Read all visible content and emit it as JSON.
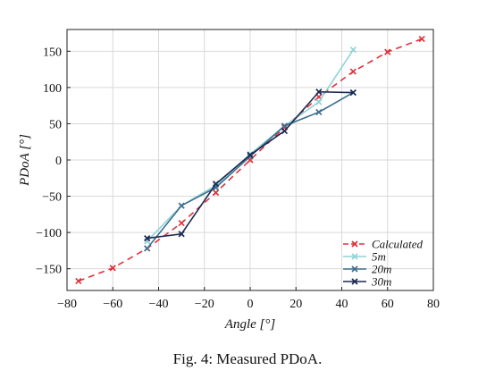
{
  "caption": "Fig. 4: Measured PDoA.",
  "chart_data": {
    "type": "line",
    "xlabel": "Angle [°]",
    "ylabel": "PDoA [°]",
    "xlim": [
      -80,
      80
    ],
    "ylim": [
      -180,
      180
    ],
    "xticks": [
      -80,
      -60,
      -40,
      -20,
      0,
      20,
      40,
      60,
      80
    ],
    "yticks": [
      -150,
      -100,
      -50,
      0,
      50,
      100,
      150
    ],
    "grid": true,
    "legend_position": "bottom-right",
    "series": [
      {
        "name": "Calculated",
        "color": "#e0323c",
        "dashed": true,
        "x": [
          -75,
          -60,
          -45,
          -30,
          -15,
          0,
          15,
          30,
          45,
          60,
          75
        ],
        "y": [
          -167,
          -149,
          -122,
          -87,
          -45,
          0,
          45,
          87,
          122,
          149,
          167
        ]
      },
      {
        "name": "5m",
        "color": "#8fd3d6",
        "dashed": false,
        "x": [
          -45,
          -30,
          -15,
          0,
          15,
          30,
          45
        ],
        "y": [
          -112,
          -63,
          -35,
          8,
          47,
          80,
          152
        ]
      },
      {
        "name": "20m",
        "color": "#3f6f8f",
        "dashed": false,
        "x": [
          -45,
          -30,
          -15,
          0,
          15,
          30,
          45
        ],
        "y": [
          -122,
          -63,
          -38,
          5,
          47,
          66,
          93
        ]
      },
      {
        "name": "30m",
        "color": "#1b2a52",
        "dashed": false,
        "x": [
          -45,
          -30,
          -15,
          0,
          15,
          30,
          45
        ],
        "y": [
          -108,
          -102,
          -33,
          7,
          40,
          94,
          93
        ]
      }
    ]
  }
}
